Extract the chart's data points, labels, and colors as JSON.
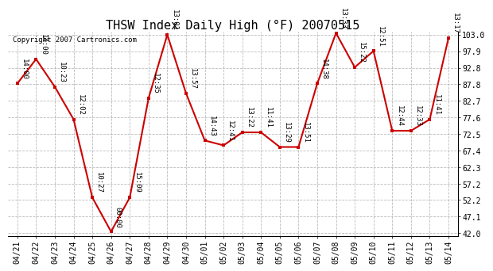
{
  "title": "THSW Index Daily High (°F) 20070515",
  "copyright": "Copyright 2007 Cartronics.com",
  "dates": [
    "04/21",
    "04/22",
    "04/23",
    "04/24",
    "04/25",
    "04/26",
    "04/27",
    "04/28",
    "04/29",
    "04/30",
    "05/01",
    "05/02",
    "05/03",
    "05/04",
    "05/05",
    "05/06",
    "05/07",
    "05/08",
    "05/09",
    "05/10",
    "05/11",
    "05/12",
    "05/13",
    "05/14"
  ],
  "values": [
    88.0,
    95.5,
    87.0,
    77.0,
    53.0,
    42.5,
    53.0,
    83.5,
    103.0,
    85.0,
    70.5,
    69.0,
    73.0,
    73.0,
    68.5,
    68.5,
    88.0,
    103.5,
    93.0,
    98.0,
    73.5,
    73.5,
    77.0,
    102.0
  ],
  "labels": [
    "14:00",
    "14:00",
    "10:23",
    "12:02",
    "10:27",
    "00:00",
    "15:09",
    "12:35",
    "13:01",
    "13:57",
    "14:43",
    "12:41",
    "13:22",
    "11:41",
    "13:29",
    "13:51",
    "14:38",
    "13:33",
    "15:22",
    "12:51",
    "12:44",
    "12:33",
    "11:41",
    "13:17"
  ],
  "line_color": "#cc0000",
  "marker_color": "#cc0000",
  "bg_color": "#ffffff",
  "grid_color": "#aaaaaa",
  "ylim_min": 42.0,
  "ylim_max": 103.0,
  "yticks": [
    42.0,
    47.1,
    52.2,
    57.2,
    62.3,
    67.4,
    72.5,
    77.6,
    82.7,
    87.8,
    92.8,
    97.9,
    103.0
  ],
  "title_fontsize": 11,
  "label_fontsize": 6.5,
  "tick_fontsize": 7,
  "copyright_fontsize": 6.5
}
